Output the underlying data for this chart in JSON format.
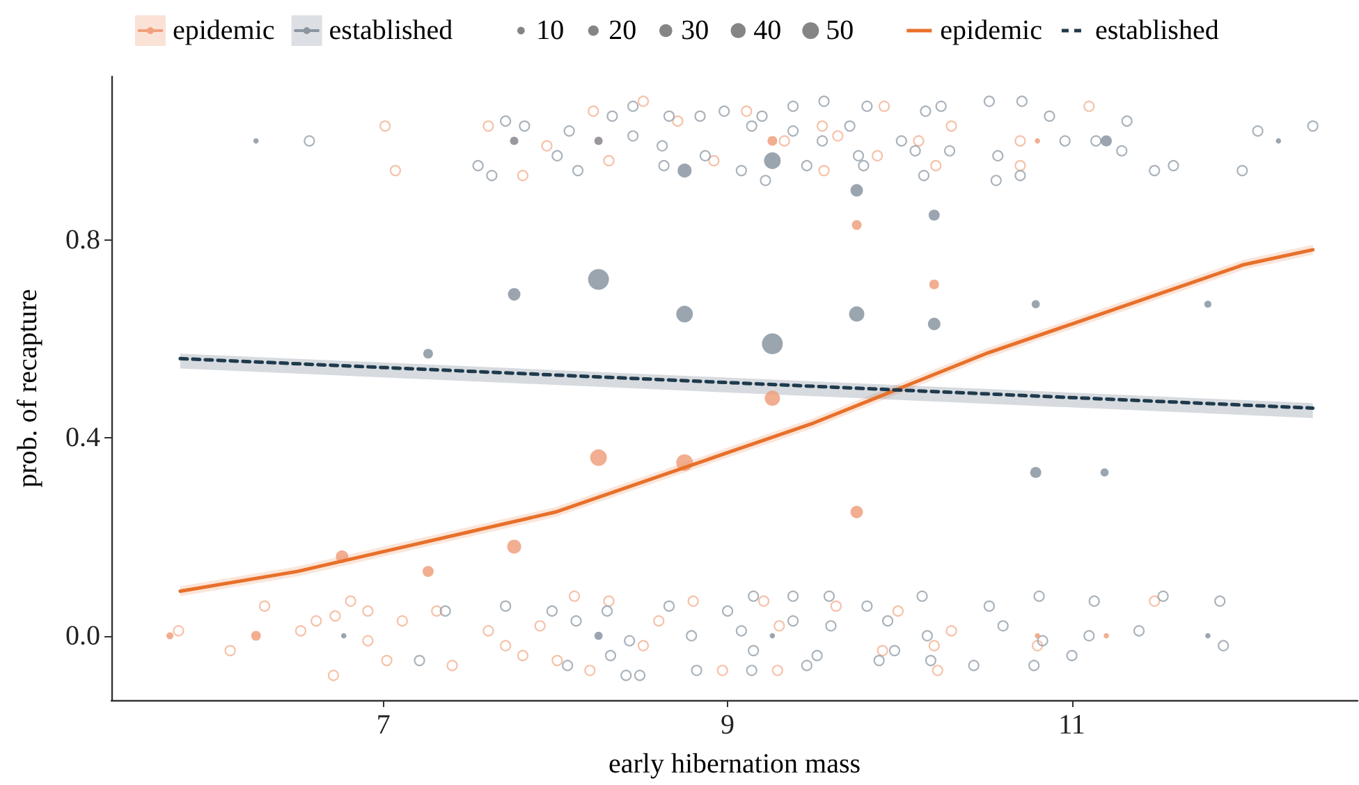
{
  "chart_data": {
    "type": "scatter",
    "xlabel": "early hibernation mass",
    "ylabel": "prob. of recapture",
    "xlim": [
      5.42,
      12.66
    ],
    "xticks": [
      7,
      9,
      11
    ],
    "ylim": [
      -0.13,
      1.13
    ],
    "yticks": [
      {
        "value": 0,
        "label": "0.0"
      },
      {
        "value": 0.4,
        "label": "0.4"
      },
      {
        "value": 0.8,
        "label": "0.8"
      }
    ],
    "grid": false,
    "legend": "top",
    "size_legend": [
      10,
      20,
      30,
      40,
      50
    ],
    "series": [
      {
        "color": "#f4b294",
        "x": [
          5.81,
          6.31,
          6.11,
          6.52,
          6.61,
          6.72,
          6.81,
          6.91,
          6.91,
          7.02,
          6.71,
          7.11,
          7.31,
          7.4,
          7.61,
          7.71,
          7.81,
          7.91,
          8.01,
          8.11,
          8.2,
          8.31,
          8.51,
          8.6,
          8.8,
          8.97,
          9.21,
          9.3,
          9.63,
          9.9,
          9.99,
          10.2,
          10.22,
          10.3,
          10.8,
          11.48,
          9.29,
          7.01,
          7.07,
          7.61,
          7.81,
          7.95,
          8.22,
          8.31,
          8.51,
          8.71,
          8.92,
          9.11,
          9.33,
          9.55,
          9.64,
          9.87,
          9.91,
          10.11,
          10.21,
          10.3,
          10.7,
          10.7,
          11.1,
          9.56
        ],
        "values": [
          0.01,
          0.06,
          -0.03,
          0.01,
          0.03,
          0.04,
          0.07,
          0.05,
          -0.01,
          -0.05,
          -0.08,
          0.03,
          0.05,
          -0.06,
          0.01,
          -0.02,
          -0.04,
          0.02,
          -0.05,
          0.08,
          -0.07,
          0.07,
          -0.02,
          0.03,
          0.07,
          -0.07,
          0.07,
          0.02,
          0.06,
          -0.03,
          0.05,
          -0.02,
          -0.07,
          0.01,
          -0.02,
          0.07,
          -0.07,
          1.03,
          0.94,
          1.03,
          0.93,
          0.99,
          1.06,
          0.96,
          1.08,
          1.04,
          0.96,
          1.06,
          1,
          1.03,
          1.01,
          0.97,
          1.07,
          1,
          0.95,
          1.03,
          1,
          0.95,
          1.07,
          0.94
        ]
      },
      {
        "color": "#95a0ab",
        "x": [
          7.36,
          7.71,
          7.98,
          8.12,
          7.21,
          8.07,
          8.3,
          8.32,
          8.41,
          8.49,
          8.43,
          8.66,
          8.79,
          8.82,
          9,
          9.15,
          9.38,
          9.59,
          9.81,
          10.13,
          10.52,
          10.81,
          11.13,
          11.53,
          11.86,
          9.08,
          9.38,
          9.6,
          9.93,
          10.16,
          10.6,
          10.83,
          11.1,
          11.39,
          11.88,
          9.15,
          9.52,
          9.97,
          9.14,
          9.46,
          9.88,
          10.18,
          10.43,
          10.78,
          11,
          6.57,
          7.71,
          7.55,
          7.82,
          8.01,
          8.08,
          7.63,
          8.13,
          8.33,
          8.45,
          8.45,
          8.62,
          8.66,
          8.63,
          8.84,
          8.87,
          8.98,
          9.2,
          9.38,
          9.56,
          9.71,
          9.81,
          10.15,
          10.24,
          10.52,
          10.71,
          10.87,
          11.32,
          12.08,
          12.4,
          10.96,
          11.14,
          11.29,
          11.48,
          11.59,
          11.99,
          10.57,
          10.56,
          10.7,
          9.14,
          9.38,
          9.55,
          9.76,
          10.01,
          10.09,
          10.29,
          10.14,
          9.08,
          9.22,
          9.46,
          9.79
        ],
        "values": [
          0.05,
          0.06,
          0.05,
          0.03,
          -0.05,
          -0.06,
          0.05,
          -0.04,
          -0.08,
          -0.08,
          -0.01,
          0.06,
          0,
          -0.07,
          0.05,
          0.08,
          0.08,
          0.08,
          0.06,
          0.08,
          0.06,
          0.08,
          0.07,
          0.08,
          0.07,
          0.01,
          0.03,
          0.02,
          0.03,
          0,
          0.02,
          -0.01,
          0,
          0.01,
          -0.02,
          -0.03,
          -0.04,
          -0.03,
          -0.07,
          -0.06,
          -0.05,
          -0.05,
          -0.06,
          -0.06,
          -0.04,
          1,
          1.04,
          0.95,
          1.03,
          0.97,
          1.02,
          0.93,
          0.94,
          1.05,
          1.07,
          1.01,
          0.99,
          1.05,
          0.95,
          1.05,
          0.97,
          1.06,
          1.05,
          1.07,
          1.08,
          1.03,
          1.07,
          1.06,
          1.07,
          1.08,
          1.08,
          1.05,
          1.04,
          1.02,
          1.03,
          1,
          1,
          0.98,
          0.94,
          0.95,
          0.94,
          0.97,
          0.92,
          0.93,
          1.03,
          1.02,
          1,
          0.97,
          1,
          0.98,
          0.98,
          0.93,
          0.94,
          0.92,
          0.95,
          0.95
        ]
      },
      {
        "type": "line",
        "name": "epidemic",
        "color": "#e8702a",
        "line_style": "solid",
        "x": [
          5.82,
          6.5,
          7,
          7.5,
          8,
          8.5,
          9,
          9.5,
          10,
          10.5,
          11,
          11.5,
          12,
          12.4
        ],
        "values": [
          0.09,
          0.13,
          0.17,
          0.21,
          0.25,
          0.31,
          0.37,
          0.43,
          0.5,
          0.57,
          0.63,
          0.69,
          0.75,
          0.78
        ],
        "lower": [
          0.08,
          0.12,
          0.16,
          0.2,
          0.24,
          0.3,
          0.36,
          0.42,
          0.49,
          0.56,
          0.62,
          0.68,
          0.74,
          0.77
        ],
        "upper": [
          0.1,
          0.14,
          0.18,
          0.22,
          0.26,
          0.32,
          0.38,
          0.44,
          0.51,
          0.58,
          0.64,
          0.7,
          0.76,
          0.79
        ]
      },
      {
        "type": "line",
        "name": "established",
        "color": "#1f3a4d",
        "line_style": "dashed",
        "x": [
          5.82,
          12.4
        ],
        "values": [
          0.56,
          0.46
        ],
        "lower": [
          0.54,
          0.44
        ],
        "upper": [
          0.57,
          0.47
        ]
      },
      {
        "type": "bubble",
        "name": "epidemic",
        "color": "#f0a07c",
        "x": [
          5.76,
          6.26,
          6.76,
          7.26,
          7.76,
          8.25,
          8.75,
          9.26,
          9.75,
          9.75,
          10.2,
          7.76,
          8.25,
          9.26,
          10.8,
          10.8,
          11.2
        ],
        "values": [
          0,
          0,
          0.16,
          0.13,
          0.18,
          0.36,
          0.35,
          0.48,
          0.25,
          0.83,
          0.71,
          1,
          1,
          1,
          1,
          0,
          0
        ],
        "sizes": [
          9,
          17,
          28,
          22,
          35,
          50,
          50,
          42,
          28,
          17,
          17,
          12,
          12,
          17,
          5,
          5,
          5
        ]
      },
      {
        "type": "bubble",
        "name": "established",
        "color": "#8a95a1",
        "x": [
          6.26,
          6.77,
          7.26,
          7.76,
          8.25,
          8.75,
          9.26,
          9.75,
          9.75,
          10.2,
          10.2,
          10.79,
          10.79,
          11.19,
          11.79,
          11.79,
          11.2,
          12.2,
          8.75,
          9.26,
          8.25,
          7.76,
          8.25,
          9.26
        ],
        "values": [
          1,
          0,
          0.57,
          0.69,
          0.72,
          0.65,
          0.59,
          0.65,
          0.9,
          0.85,
          0.63,
          0.67,
          0.33,
          0.33,
          0.67,
          0,
          1,
          1,
          0.94,
          0.96,
          1,
          1,
          0,
          0
        ],
        "sizes": [
          5,
          5,
          17,
          28,
          78,
          50,
          78,
          42,
          28,
          22,
          28,
          12,
          22,
          12,
          9,
          5,
          22,
          5,
          35,
          50,
          12,
          12,
          12,
          5
        ]
      }
    ]
  }
}
